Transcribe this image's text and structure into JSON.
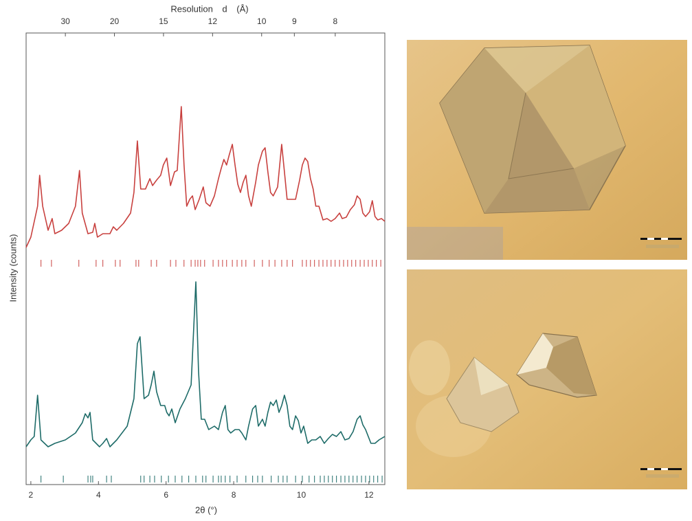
{
  "chart_data": {
    "type": "line",
    "x2label": "Resolution d (Å)",
    "xlabel": "2θ (°)",
    "ylabel": "Intensity (counts)",
    "xlim": [
      1.86,
      12.47
    ],
    "xticks": [
      2,
      4,
      6,
      8,
      10,
      12
    ],
    "x2lim": [
      50,
      7.05
    ],
    "x2scale": "reciprocal",
    "x2ticks": [
      30,
      20,
      15,
      12,
      10,
      9,
      8
    ],
    "ylim": [
      0,
      657
    ],
    "grid": false,
    "series": [
      {
        "color": "#c8403e",
        "x": [
          1.86,
          2.0,
          2.2,
          2.26,
          2.35,
          2.51,
          2.63,
          2.71,
          2.91,
          3.12,
          3.32,
          3.44,
          3.52,
          3.69,
          3.83,
          3.89,
          3.97,
          4.13,
          4.34,
          4.44,
          4.54,
          4.74,
          4.95,
          5.05,
          5.15,
          5.25,
          5.39,
          5.52,
          5.6,
          5.72,
          5.84,
          5.92,
          6.02,
          6.13,
          6.25,
          6.33,
          6.45,
          6.53,
          6.61,
          6.7,
          6.78,
          6.86,
          6.98,
          7.1,
          7.18,
          7.3,
          7.43,
          7.55,
          7.63,
          7.71,
          7.79,
          7.87,
          7.96,
          8.04,
          8.12,
          8.2,
          8.28,
          8.36,
          8.44,
          8.52,
          8.65,
          8.73,
          8.85,
          8.93,
          9.01,
          9.09,
          9.17,
          9.3,
          9.42,
          9.5,
          9.58,
          9.7,
          9.83,
          9.95,
          10.03,
          10.11,
          10.19,
          10.27,
          10.35,
          10.43,
          10.52,
          10.64,
          10.76,
          10.88,
          11.0,
          11.13,
          11.21,
          11.33,
          11.45,
          11.57,
          11.65,
          11.74,
          11.82,
          11.9,
          12.02,
          12.1,
          12.18,
          12.26,
          12.37,
          12.47
        ],
        "values": [
          345,
          360,
          405,
          450,
          405,
          370,
          387,
          365,
          370,
          380,
          405,
          457,
          395,
          365,
          367,
          380,
          360,
          365,
          365,
          375,
          370,
          380,
          395,
          425,
          500,
          430,
          430,
          445,
          435,
          443,
          450,
          465,
          475,
          435,
          455,
          457,
          550,
          465,
          405,
          415,
          420,
          400,
          415,
          433,
          410,
          405,
          420,
          445,
          460,
          473,
          465,
          480,
          495,
          465,
          437,
          425,
          440,
          450,
          420,
          405,
          440,
          465,
          485,
          490,
          455,
          425,
          420,
          433,
          495,
          455,
          415,
          415,
          415,
          443,
          465,
          475,
          470,
          445,
          430,
          405,
          405,
          385,
          387,
          383,
          387,
          395,
          387,
          389,
          400,
          407,
          420,
          415,
          395,
          390,
          397,
          413,
          390,
          385,
          387,
          383
        ],
        "reflections": [
          2.3,
          2.61,
          3.42,
          3.93,
          4.13,
          4.5,
          4.64,
          5.11,
          5.19,
          5.56,
          5.72,
          6.13,
          6.29,
          6.53,
          6.74,
          6.86,
          6.94,
          7.02,
          7.14,
          7.39,
          7.55,
          7.67,
          7.79,
          7.96,
          8.1,
          8.24,
          8.36,
          8.61,
          8.85,
          9.05,
          9.22,
          9.42,
          9.58,
          9.74,
          10.03,
          10.15,
          10.27,
          10.39,
          10.52,
          10.64,
          10.76,
          10.88,
          11.0,
          11.13,
          11.25,
          11.37,
          11.49,
          11.61,
          11.74,
          11.86,
          11.98,
          12.1,
          12.22,
          12.35
        ]
      },
      {
        "color": "#1d6b68",
        "x": [
          1.86,
          2.0,
          2.1,
          2.2,
          2.3,
          2.51,
          2.71,
          3.02,
          3.32,
          3.52,
          3.61,
          3.69,
          3.75,
          3.83,
          4.03,
          4.13,
          4.24,
          4.34,
          4.54,
          4.85,
          5.05,
          5.15,
          5.23,
          5.35,
          5.48,
          5.56,
          5.64,
          5.72,
          5.84,
          5.96,
          6.02,
          6.09,
          6.17,
          6.27,
          6.41,
          6.57,
          6.74,
          6.88,
          6.96,
          7.04,
          7.14,
          7.26,
          7.43,
          7.55,
          7.67,
          7.75,
          7.83,
          7.91,
          8.04,
          8.16,
          8.24,
          8.36,
          8.44,
          8.56,
          8.65,
          8.73,
          8.85,
          8.93,
          9.01,
          9.09,
          9.17,
          9.26,
          9.34,
          9.42,
          9.5,
          9.58,
          9.66,
          9.74,
          9.83,
          9.91,
          9.99,
          10.07,
          10.19,
          10.31,
          10.43,
          10.56,
          10.68,
          10.8,
          10.92,
          11.04,
          11.17,
          11.29,
          11.41,
          11.53,
          11.65,
          11.74,
          11.82,
          11.9,
          12.06,
          12.18,
          12.3,
          12.47
        ],
        "values": [
          55,
          65,
          70,
          130,
          65,
          55,
          60,
          65,
          75,
          90,
          103,
          97,
          105,
          65,
          55,
          60,
          67,
          55,
          65,
          85,
          125,
          205,
          215,
          125,
          130,
          145,
          165,
          135,
          115,
          115,
          105,
          100,
          110,
          90,
          110,
          125,
          145,
          295,
          165,
          95,
          95,
          80,
          85,
          80,
          105,
          115,
          80,
          75,
          80,
          80,
          75,
          65,
          85,
          110,
          115,
          85,
          95,
          85,
          105,
          120,
          115,
          123,
          105,
          115,
          130,
          115,
          85,
          80,
          100,
          93,
          75,
          85,
          60,
          65,
          65,
          70,
          60,
          67,
          73,
          70,
          77,
          65,
          67,
          77,
          95,
          100,
          87,
          80,
          60,
          60,
          65,
          70
        ],
        "reflections": [
          2.3,
          2.96,
          3.69,
          3.77,
          3.83,
          4.24,
          4.38,
          5.25,
          5.35,
          5.52,
          5.66,
          5.86,
          6.07,
          6.27,
          6.47,
          6.67,
          6.88,
          7.08,
          7.18,
          7.39,
          7.55,
          7.63,
          7.75,
          7.89,
          8.1,
          8.36,
          8.56,
          8.71,
          8.85,
          9.11,
          9.32,
          9.46,
          9.58,
          9.83,
          10.03,
          10.23,
          10.39,
          10.56,
          10.68,
          10.8,
          10.92,
          11.04,
          11.17,
          11.29,
          11.41,
          11.53,
          11.65,
          11.78,
          11.9,
          12.02,
          12.14,
          12.26,
          12.39
        ]
      }
    ]
  }
}
